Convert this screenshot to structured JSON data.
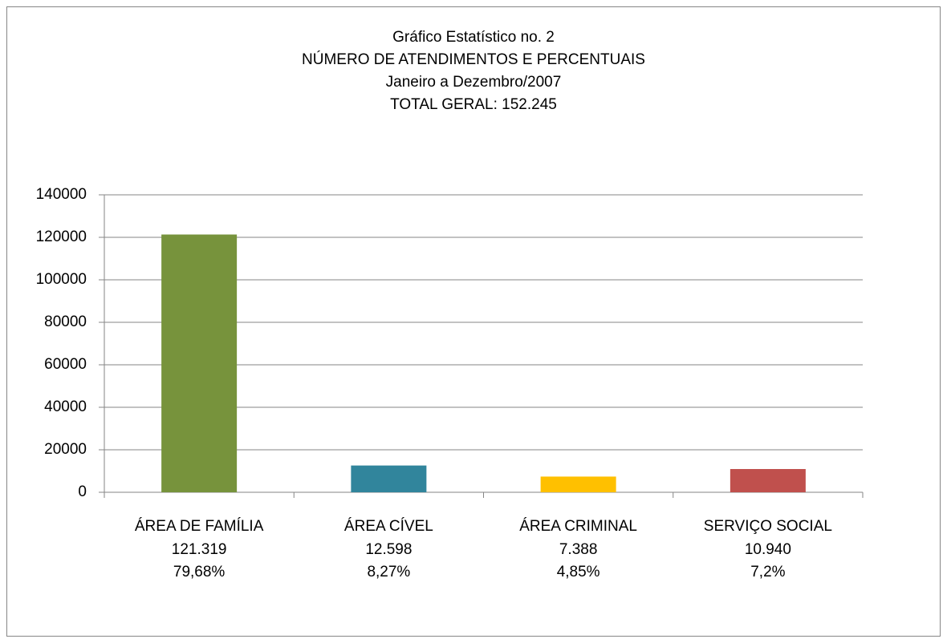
{
  "chart_data": {
    "type": "bar",
    "title": [
      "Gráfico Estatístico no. 2",
      "NÚMERO DE ATENDIMENTOS E PERCENTUAIS",
      "Janeiro a Dezembro/2007",
      "TOTAL GERAL: 152.245"
    ],
    "categories": [
      "ÁREA DE FAMÍLIA",
      "ÁREA CÍVEL",
      "ÁREA CRIMINAL",
      "SERVIÇO SOCIAL"
    ],
    "values": [
      121319,
      12598,
      7388,
      10940
    ],
    "value_labels": [
      "121.319",
      "12.598",
      "7.388",
      "10.940"
    ],
    "percent_labels": [
      "79,68%",
      "8,27%",
      "4,85%",
      "7,2%"
    ],
    "colors": [
      "#77933c",
      "#31859c",
      "#ffc000",
      "#c0504d"
    ],
    "ylim": [
      0,
      140000
    ],
    "yticks": [
      0,
      20000,
      40000,
      60000,
      80000,
      100000,
      120000,
      140000
    ],
    "grid": true
  }
}
